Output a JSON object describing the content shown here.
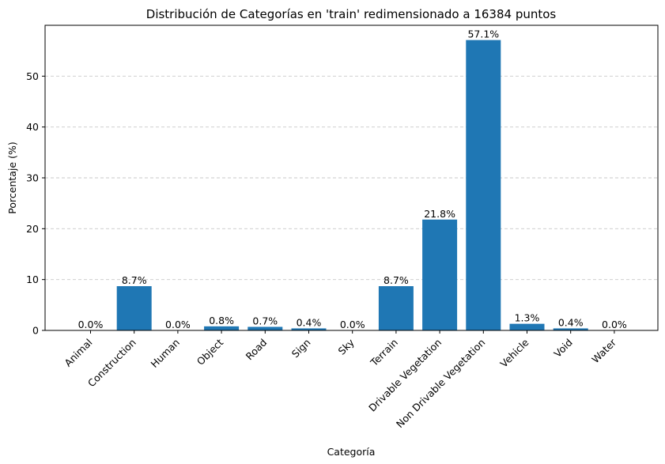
{
  "chart_data": {
    "type": "bar",
    "title": "Distribución de Categorías en 'train' redimensionado a 16384 puntos",
    "xlabel": "Categoría",
    "ylabel": "Porcentaje (%)",
    "categories": [
      "Animal",
      "Construction",
      "Human",
      "Object",
      "Road",
      "Sign",
      "Sky",
      "Terrain",
      "Drivable Vegetation",
      "Non Drivable Vegetation",
      "Vehicle",
      "Void",
      "Water"
    ],
    "values": [
      0.0,
      8.7,
      0.0,
      0.8,
      0.7,
      0.4,
      0.0,
      8.7,
      21.8,
      57.1,
      1.3,
      0.4,
      0.0
    ],
    "value_labels": [
      "0.0%",
      "8.7%",
      "0.0%",
      "0.8%",
      "0.7%",
      "0.4%",
      "0.0%",
      "8.7%",
      "21.8%",
      "57.1%",
      "1.3%",
      "0.4%",
      "0.0%"
    ],
    "yticks": [
      0,
      10,
      20,
      30,
      40,
      50
    ],
    "ylim": [
      0,
      60
    ],
    "grid": "y-dashed",
    "bar_color": "#1f77b4",
    "grid_color": "#c8c8c8"
  }
}
